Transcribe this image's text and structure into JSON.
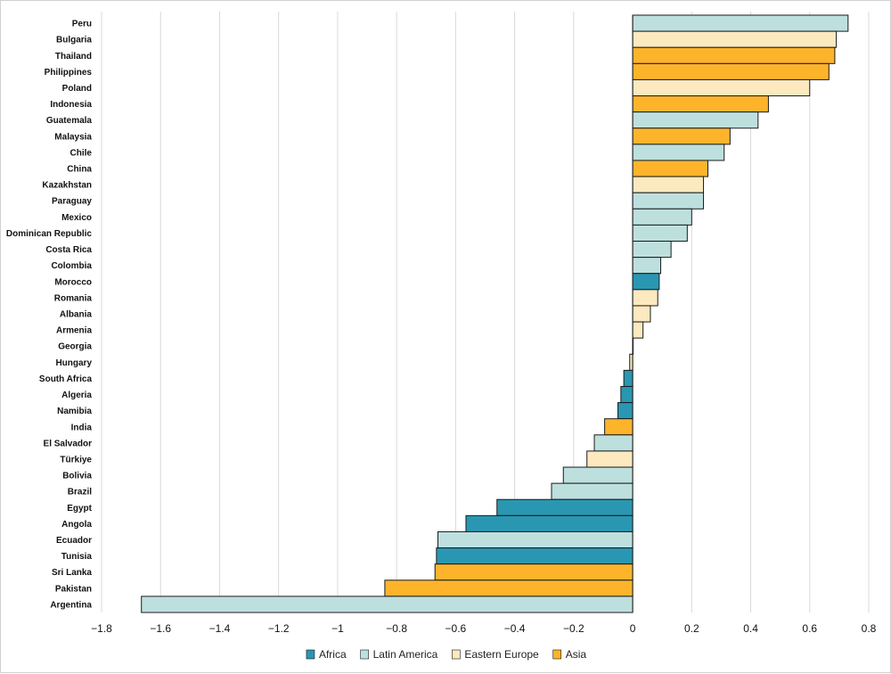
{
  "chart_data": {
    "type": "bar",
    "orientation": "horizontal",
    "title": "",
    "xlabel": "",
    "ylabel": "",
    "xlim": [
      -1.8,
      0.8
    ],
    "xticks": [
      -1.8,
      -1.6,
      -1.4,
      -1.2,
      -1,
      -0.8,
      -0.6,
      -0.4,
      -0.2,
      0,
      0.2,
      0.4,
      0.6,
      0.8
    ],
    "xtick_labels": [
      "−1.8",
      "−1.6",
      "−1.4",
      "−1.2",
      "−1",
      "−0.8",
      "−0.6",
      "−0.4",
      "−0.2",
      "0",
      "0.2",
      "0.4",
      "0.6",
      "0.8"
    ],
    "grid": "vertical",
    "legend_position": "bottom",
    "groups": [
      {
        "name": "Africa",
        "color": "#2a97b2"
      },
      {
        "name": "Latin America",
        "color": "#bde0df"
      },
      {
        "name": "Eastern Europe",
        "color": "#fde9bf"
      },
      {
        "name": "Asia",
        "color": "#fdb42b"
      }
    ],
    "categories": [
      "Peru",
      "Bulgaria",
      "Thailand",
      "Philippines",
      "Poland",
      "Indonesia",
      "Guatemala",
      "Malaysia",
      "Chile",
      "China",
      "Kazakhstan",
      "Paraguay",
      "Mexico",
      "Dominican Republic",
      "Costa Rica",
      "Colombia",
      "Morocco",
      "Romania",
      "Albania",
      "Armenia",
      "Georgia",
      "Hungary",
      "South Africa",
      "Algeria",
      "Namibia",
      "India",
      "El Salvador",
      "Türkiye",
      "Bolivia",
      "Brazil",
      "Egypt",
      "Angola",
      "Ecuador",
      "Tunisia",
      "Sri Lanka",
      "Pakistan",
      "Argentina"
    ],
    "values": [
      0.73,
      0.69,
      0.685,
      0.665,
      0.6,
      0.46,
      0.425,
      0.33,
      0.31,
      0.255,
      0.24,
      0.24,
      0.2,
      0.185,
      0.13,
      0.095,
      0.09,
      0.085,
      0.06,
      0.035,
      0.0,
      -0.01,
      -0.03,
      -0.04,
      -0.05,
      -0.095,
      -0.13,
      -0.155,
      -0.235,
      -0.275,
      -0.46,
      -0.565,
      -0.66,
      -0.665,
      -0.67,
      -0.84,
      -1.665
    ],
    "group_of": [
      "Latin America",
      "Eastern Europe",
      "Asia",
      "Asia",
      "Eastern Europe",
      "Asia",
      "Latin America",
      "Asia",
      "Latin America",
      "Asia",
      "Eastern Europe",
      "Latin America",
      "Latin America",
      "Latin America",
      "Latin America",
      "Latin America",
      "Africa",
      "Eastern Europe",
      "Eastern Europe",
      "Eastern Europe",
      "Eastern Europe",
      "Eastern Europe",
      "Africa",
      "Africa",
      "Africa",
      "Asia",
      "Latin America",
      "Eastern Europe",
      "Latin America",
      "Latin America",
      "Africa",
      "Africa",
      "Latin America",
      "Africa",
      "Asia",
      "Asia",
      "Latin America"
    ]
  }
}
